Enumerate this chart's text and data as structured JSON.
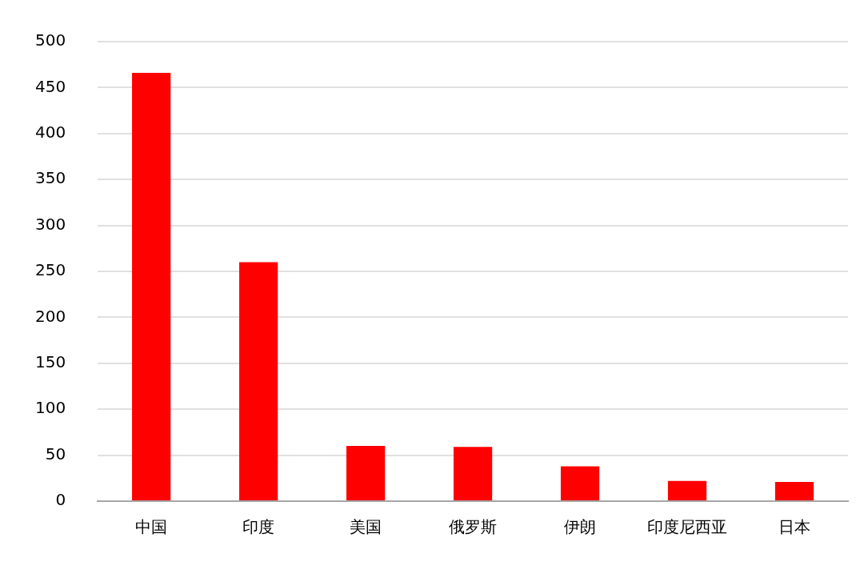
{
  "chart_data": {
    "type": "bar",
    "categories": [
      "中国",
      "印度",
      "美国",
      "俄罗斯",
      "伊朗",
      "印度尼西亚",
      "日本"
    ],
    "values": [
      466,
      260,
      60,
      59,
      38,
      22,
      21
    ],
    "color": "#ff0000",
    "ylim": [
      0,
      500
    ],
    "yticks": [
      0,
      50,
      100,
      150,
      200,
      250,
      300,
      350,
      400,
      450,
      500
    ],
    "grid": "y",
    "legend": false
  }
}
